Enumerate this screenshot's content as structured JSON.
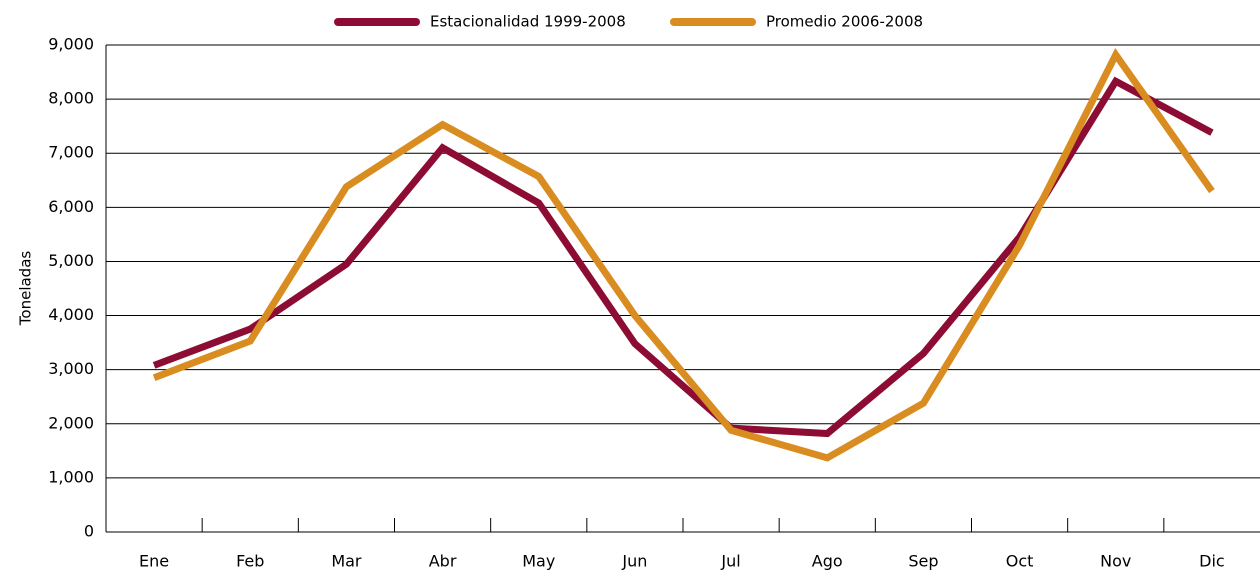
{
  "chart_data": {
    "type": "line",
    "categories": [
      "Ene",
      "Feb",
      "Mar",
      "Abr",
      "May",
      "Jun",
      "Jul",
      "Ago",
      "Sep",
      "Oct",
      "Nov",
      "Dic"
    ],
    "series": [
      {
        "name": "Estacionalidad 1999-2008",
        "color": "#8c0c33",
        "values": [
          3080,
          3750,
          4950,
          7100,
          6080,
          3480,
          1920,
          1820,
          3300,
          5450,
          8330,
          7380
        ]
      },
      {
        "name": "Promedio 2006-2008",
        "color": "#d98c20",
        "values": [
          2850,
          3530,
          6380,
          7530,
          6570,
          4000,
          1880,
          1370,
          2380,
          5300,
          8820,
          6300
        ]
      }
    ],
    "ylabel": "Toneladas",
    "ylim": [
      0,
      9000
    ],
    "yticks": [
      0,
      {
        "value": 1000,
        "label": "1,000"
      },
      {
        "value": 2000,
        "label": "2,000"
      },
      {
        "value": 3000,
        "label": "3,000"
      },
      {
        "value": 4000,
        "label": "4,000"
      },
      {
        "value": 5000,
        "label": "5,000"
      },
      {
        "value": 6000,
        "label": "6,000"
      },
      {
        "value": 7000,
        "label": "7,000"
      },
      {
        "value": 8000,
        "label": "8,000"
      },
      {
        "value": 9000,
        "label": "9,000"
      }
    ],
    "grid": true,
    "legend": "top"
  }
}
